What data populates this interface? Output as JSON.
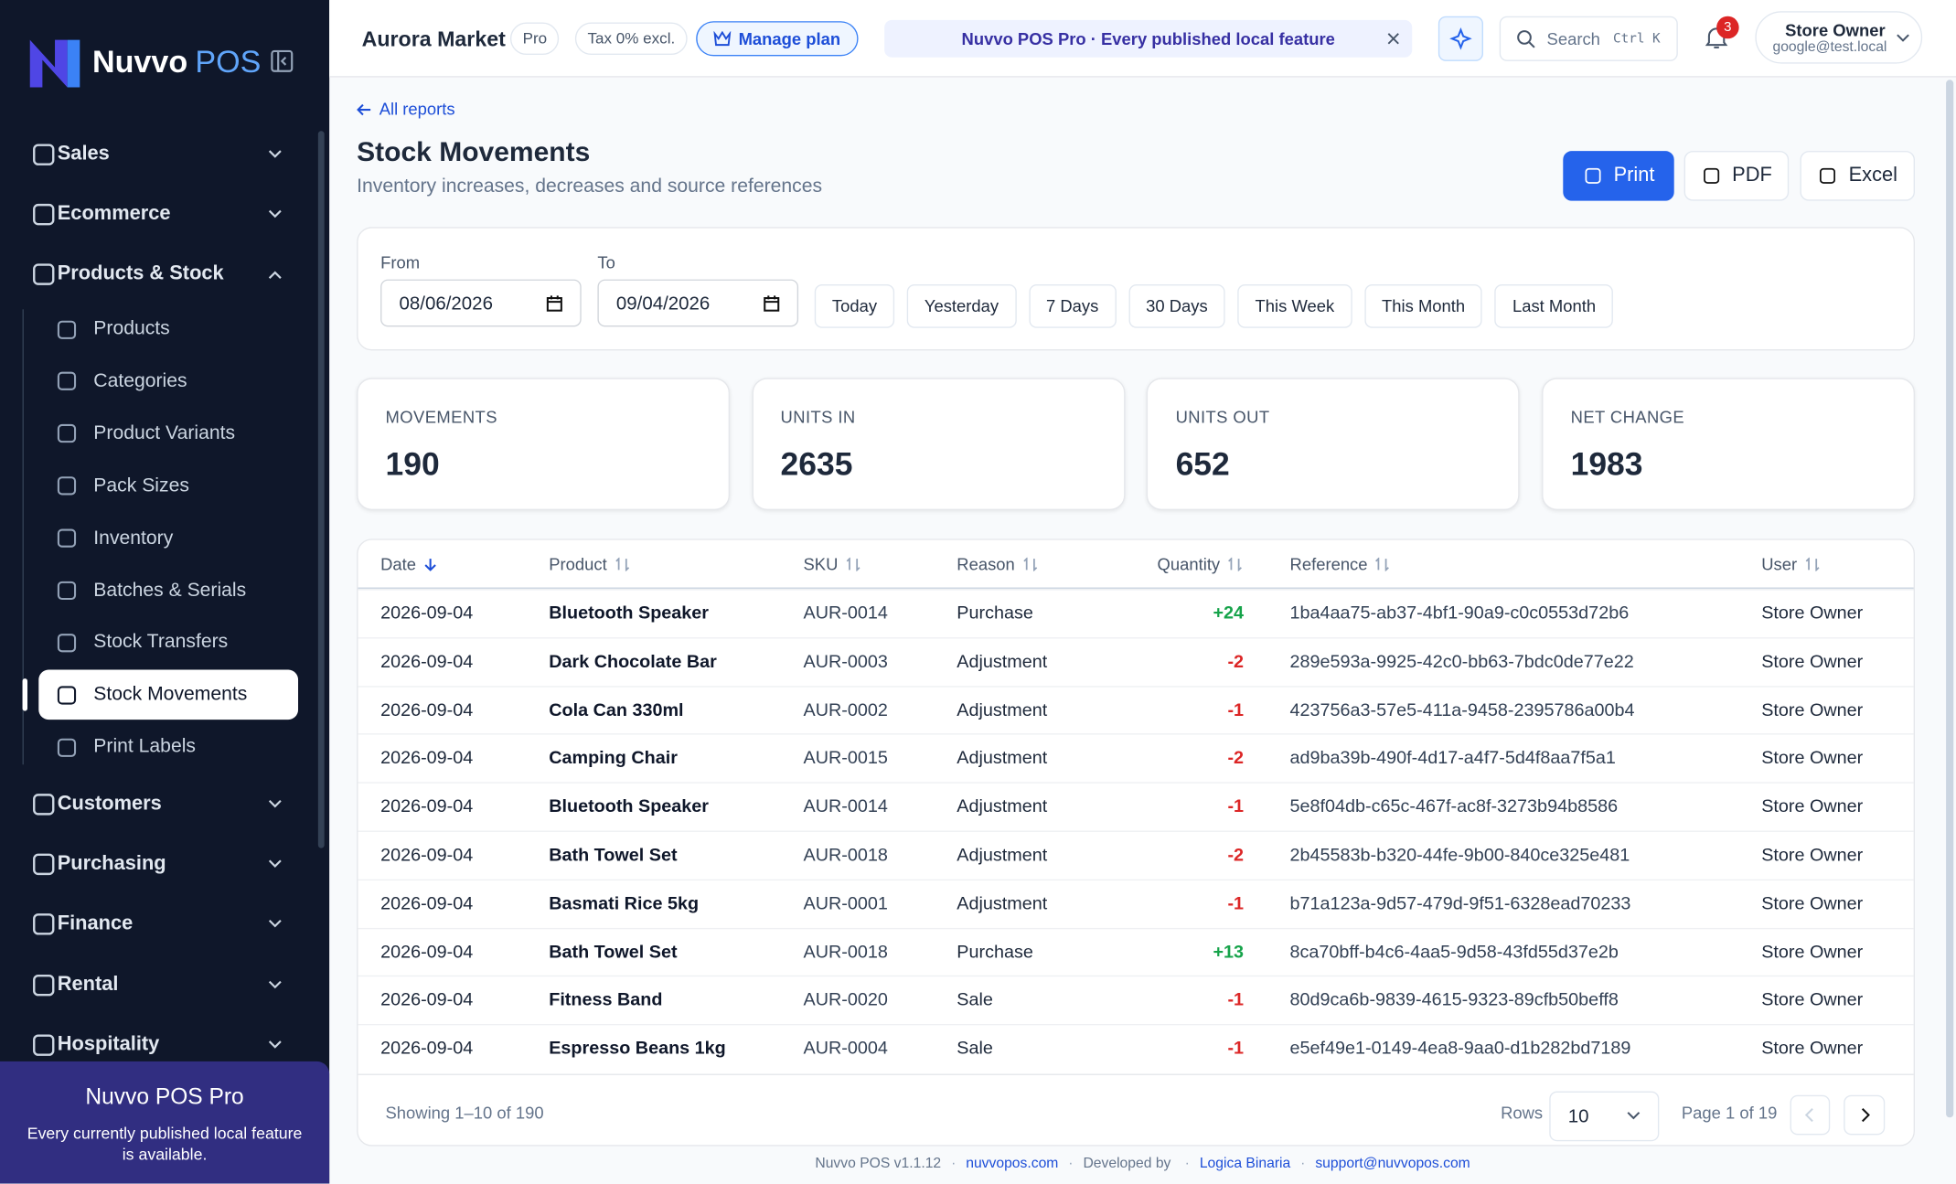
{
  "sidebar": {
    "brand": "Nuvvo",
    "brand_suffix": "POS",
    "nav": [
      {
        "label": "Sales"
      },
      {
        "label": "Ecommerce"
      },
      {
        "label": "Products & Stock",
        "children": [
          "Products",
          "Categories",
          "Product Variants",
          "Pack Sizes",
          "Inventory",
          "Batches & Serials",
          "Stock Transfers",
          "Stock Movements",
          "Print Labels"
        ]
      },
      {
        "label": "Customers"
      },
      {
        "label": "Purchasing"
      },
      {
        "label": "Finance"
      },
      {
        "label": "Rental"
      },
      {
        "label": "Hospitality"
      }
    ],
    "promo": {
      "title": "Nuvvo POS Pro",
      "text": "Every currently published local feature is available."
    }
  },
  "header": {
    "store": "Aurora Market",
    "plan": "Pro",
    "tax": "Tax 0% excl.",
    "manage": "Manage plan",
    "banner": "Nuvvo POS Pro · Every published local feature",
    "search": "Search",
    "shortcut": "Ctrl K",
    "notifications": "3",
    "user": "Store Owner",
    "email": "google@test.local"
  },
  "page": {
    "back": "All reports",
    "title": "Stock Movements",
    "subtitle": "Inventory increases, decreases and source references",
    "actions": [
      "Print",
      "PDF",
      "Excel"
    ]
  },
  "filters": {
    "from_label": "From",
    "from": "08/06/2026",
    "to_label": "To",
    "to": "09/04/2026",
    "presets": [
      "Today",
      "Yesterday",
      "7 Days",
      "30 Days",
      "This Week",
      "This Month",
      "Last Month"
    ]
  },
  "stats": [
    {
      "label": "MOVEMENTS",
      "value": 190
    },
    {
      "label": "UNITS IN",
      "value": 2635
    },
    {
      "label": "UNITS OUT",
      "value": 652
    },
    {
      "label": "NET CHANGE",
      "value": 1983
    }
  ],
  "table": {
    "columns": [
      "Date",
      "Product",
      "SKU",
      "Reason",
      "Quantity",
      "Reference",
      "User"
    ],
    "rows": [
      [
        "2026-09-04",
        "Bluetooth Speaker",
        "AUR-0014",
        "Purchase",
        "+24",
        "1ba4aa75-ab37-4bf1-90a9-c0c0553d72b6",
        "Store Owner"
      ],
      [
        "2026-09-04",
        "Dark Chocolate Bar",
        "AUR-0003",
        "Adjustment",
        "-2",
        "289e593a-9925-42c0-bb63-7bdc0de77e22",
        "Store Owner"
      ],
      [
        "2026-09-04",
        "Cola Can 330ml",
        "AUR-0002",
        "Adjustment",
        "-1",
        "423756a3-57e5-411a-9458-2395786a00b4",
        "Store Owner"
      ],
      [
        "2026-09-04",
        "Camping Chair",
        "AUR-0015",
        "Adjustment",
        "-2",
        "ad9ba39b-490f-4d17-a4f7-5d4f8aa7f5a1",
        "Store Owner"
      ],
      [
        "2026-09-04",
        "Bluetooth Speaker",
        "AUR-0014",
        "Adjustment",
        "-1",
        "5e8f04db-c65c-467f-ac8f-3273b94b8586",
        "Store Owner"
      ],
      [
        "2026-09-04",
        "Bath Towel Set",
        "AUR-0018",
        "Adjustment",
        "-2",
        "2b45583b-b320-44fe-9b00-840ce325e481",
        "Store Owner"
      ],
      [
        "2026-09-04",
        "Basmati Rice 5kg",
        "AUR-0001",
        "Adjustment",
        "-1",
        "b71a123a-9d57-479d-9f51-6328ead70233",
        "Store Owner"
      ],
      [
        "2026-09-04",
        "Bath Towel Set",
        "AUR-0018",
        "Purchase",
        "+13",
        "8ca70bff-b4c6-4aa5-9d58-43fd55d37e2b",
        "Store Owner"
      ],
      [
        "2026-09-04",
        "Fitness Band",
        "AUR-0020",
        "Sale",
        "-1",
        "80d9ca6b-9839-4615-9323-89cfb50beff8",
        "Store Owner"
      ],
      [
        "2026-09-04",
        "Espresso Beans 1kg",
        "AUR-0004",
        "Sale",
        "-1",
        "e5ef49e1-0149-4ea8-9aa0-d1b282bd7189",
        "Store Owner"
      ]
    ]
  },
  "pagination": {
    "showing": "Showing 1–10 of 190",
    "rows_label": "Rows",
    "rows": "10",
    "page": "Page 1 of 19"
  },
  "footer": {
    "version": "Nuvvo POS v1.1.12",
    "site": "nuvvopos.com",
    "dev_label": "Developed by",
    "dev": "Logica Binaria",
    "support": "support@nuvvopos.com"
  }
}
